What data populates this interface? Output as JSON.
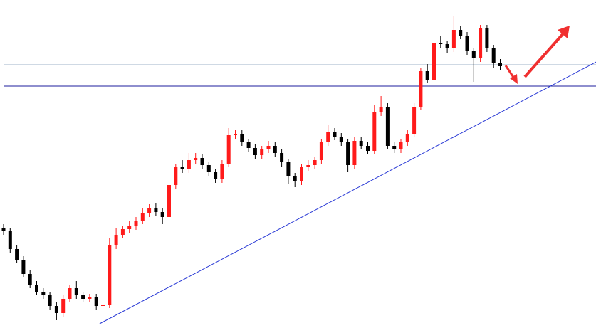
{
  "chart_data": {
    "type": "candlestick",
    "up_color": "#ff1a1a",
    "down_color": "#000000",
    "ylim": [
      0,
      461
    ],
    "open": [
      141,
      136,
      111,
      96,
      76,
      61,
      51,
      46,
      31,
      21,
      41,
      56,
      46,
      41,
      43,
      31,
      33,
      116,
      131,
      139,
      143,
      151,
      161,
      169,
      163,
      156,
      201,
      226,
      223,
      236,
      239,
      229,
      219,
      209,
      231,
      271,
      273,
      261,
      253,
      243,
      251,
      256,
      246,
      233,
      213,
      206,
      226,
      229,
      236,
      261,
      276,
      269,
      261,
      229,
      263,
      256,
      249,
      303,
      311,
      256,
      251,
      261,
      273,
      311,
      361,
      349,
      401,
      399,
      393,
      419,
      411,
      389,
      379,
      421,
      393,
      373
    ],
    "high": [
      146,
      141,
      116,
      101,
      81,
      66,
      56,
      51,
      36,
      46,
      61,
      66,
      51,
      48,
      48,
      38,
      126,
      141,
      144,
      150,
      156,
      168,
      174,
      176,
      168,
      230,
      231,
      236,
      246,
      246,
      244,
      234,
      224,
      236,
      281,
      278,
      278,
      266,
      258,
      256,
      263,
      261,
      251,
      238,
      218,
      231,
      236,
      241,
      266,
      286,
      281,
      274,
      266,
      268,
      268,
      261,
      313,
      326,
      316,
      261,
      266,
      278,
      316,
      366,
      371,
      406,
      411,
      404,
      439,
      424,
      416,
      394,
      426,
      426,
      398,
      378
    ],
    "low": [
      131,
      106,
      91,
      71,
      56,
      46,
      41,
      26,
      11,
      16,
      36,
      41,
      36,
      36,
      26,
      21,
      28,
      111,
      126,
      134,
      138,
      146,
      156,
      158,
      146,
      151,
      196,
      218,
      218,
      231,
      224,
      214,
      204,
      204,
      226,
      266,
      256,
      248,
      238,
      238,
      246,
      241,
      226,
      203,
      198,
      201,
      221,
      224,
      231,
      256,
      264,
      256,
      219,
      224,
      251,
      244,
      244,
      298,
      251,
      246,
      246,
      256,
      268,
      306,
      344,
      344,
      394,
      386,
      388,
      406,
      384,
      346,
      374,
      388,
      366,
      363
    ],
    "close": [
      136,
      111,
      96,
      76,
      61,
      51,
      46,
      31,
      21,
      41,
      56,
      46,
      41,
      43,
      31,
      33,
      116,
      131,
      139,
      143,
      151,
      161,
      169,
      163,
      156,
      201,
      226,
      223,
      236,
      239,
      229,
      219,
      209,
      231,
      271,
      273,
      261,
      253,
      243,
      251,
      256,
      246,
      233,
      213,
      206,
      226,
      229,
      236,
      261,
      276,
      269,
      261,
      229,
      263,
      256,
      249,
      303,
      311,
      256,
      251,
      261,
      273,
      311,
      361,
      349,
      401,
      399,
      393,
      419,
      411,
      389,
      379,
      421,
      393,
      373,
      368
    ],
    "hlines": [
      {
        "value": 370,
        "color": "#9fb3c8"
      },
      {
        "value": 340,
        "color": "#1c1c9c"
      }
    ],
    "trendline": {
      "x": [
        14.5,
        89.5
      ],
      "y": [
        6,
        374
      ],
      "color": "#2b3bd6"
    }
  }
}
